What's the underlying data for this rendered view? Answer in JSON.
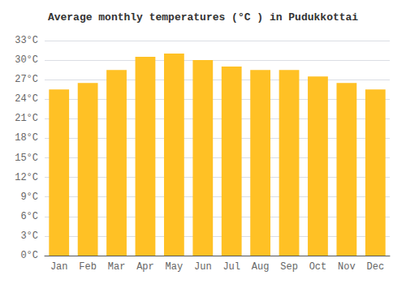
{
  "chart_data": {
    "type": "bar",
    "title": "Average monthly temperatures (°C ) in Pudukkottai",
    "categories": [
      "Jan",
      "Feb",
      "Mar",
      "Apr",
      "May",
      "Jun",
      "Jul",
      "Aug",
      "Sep",
      "Oct",
      "Nov",
      "Dec"
    ],
    "values": [
      25.5,
      26.5,
      28.5,
      30.5,
      31.0,
      30.0,
      29.0,
      28.5,
      28.5,
      27.5,
      26.5,
      25.5
    ],
    "color": "#FFC125",
    "ylim": [
      0,
      33
    ],
    "yticks": [
      {
        "value": 0,
        "label": "0°C"
      },
      {
        "value": 3,
        "label": "3°C"
      },
      {
        "value": 6,
        "label": "6°C"
      },
      {
        "value": 9,
        "label": "9°C"
      },
      {
        "value": 12,
        "label": "12°C"
      },
      {
        "value": 15,
        "label": "15°C"
      },
      {
        "value": 18,
        "label": "18°C"
      },
      {
        "value": 21,
        "label": "21°C"
      },
      {
        "value": 24,
        "label": "24°C"
      },
      {
        "value": 27,
        "label": "27°C"
      },
      {
        "value": 30,
        "label": "30°C"
      },
      {
        "value": 33,
        "label": "33°C"
      }
    ],
    "grid": true
  }
}
